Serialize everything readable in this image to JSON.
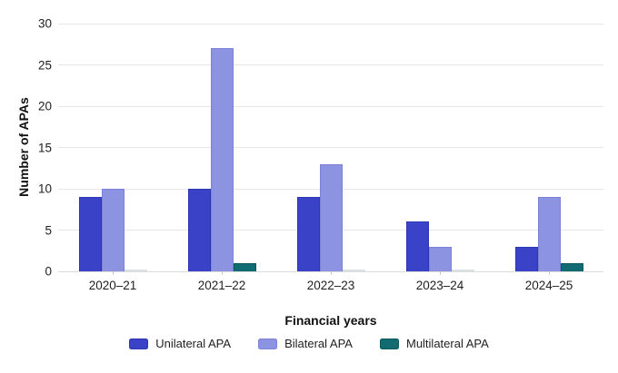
{
  "chart_data": {
    "type": "bar",
    "title": "",
    "categories": [
      "2020–21",
      "2021–22",
      "2022–23",
      "2023–24",
      "2024–25"
    ],
    "series": [
      {
        "name": "Unilateral APA",
        "color": "#3A42C7",
        "border_color": "#2F36B2",
        "values": [
          9,
          10,
          9,
          6,
          3
        ]
      },
      {
        "name": "Bilateral APA",
        "color": "#8C93E1",
        "border_color": "#7A81D6",
        "values": [
          10,
          27,
          13,
          3,
          9
        ]
      },
      {
        "name": "Multilateral APA",
        "color": "#116B70",
        "border_color": "#0A575C",
        "values": [
          0,
          1,
          0,
          0,
          1
        ]
      }
    ],
    "xlabel": "Financial years",
    "ylabel": "Number of APAs",
    "ylim": [
      0,
      30
    ],
    "yticks": [
      0,
      5,
      10,
      15,
      20,
      25,
      30
    ],
    "grid": true,
    "legend_position": "bottom"
  },
  "ui_colors": {
    "background": "#FFFFFF",
    "gridline": "#E7E7E7",
    "baseline": "#DBDBDB",
    "tick_mark": "#C9C9C9",
    "zero_bar": "#D9E2E4",
    "text": "#1F1F1F"
  }
}
